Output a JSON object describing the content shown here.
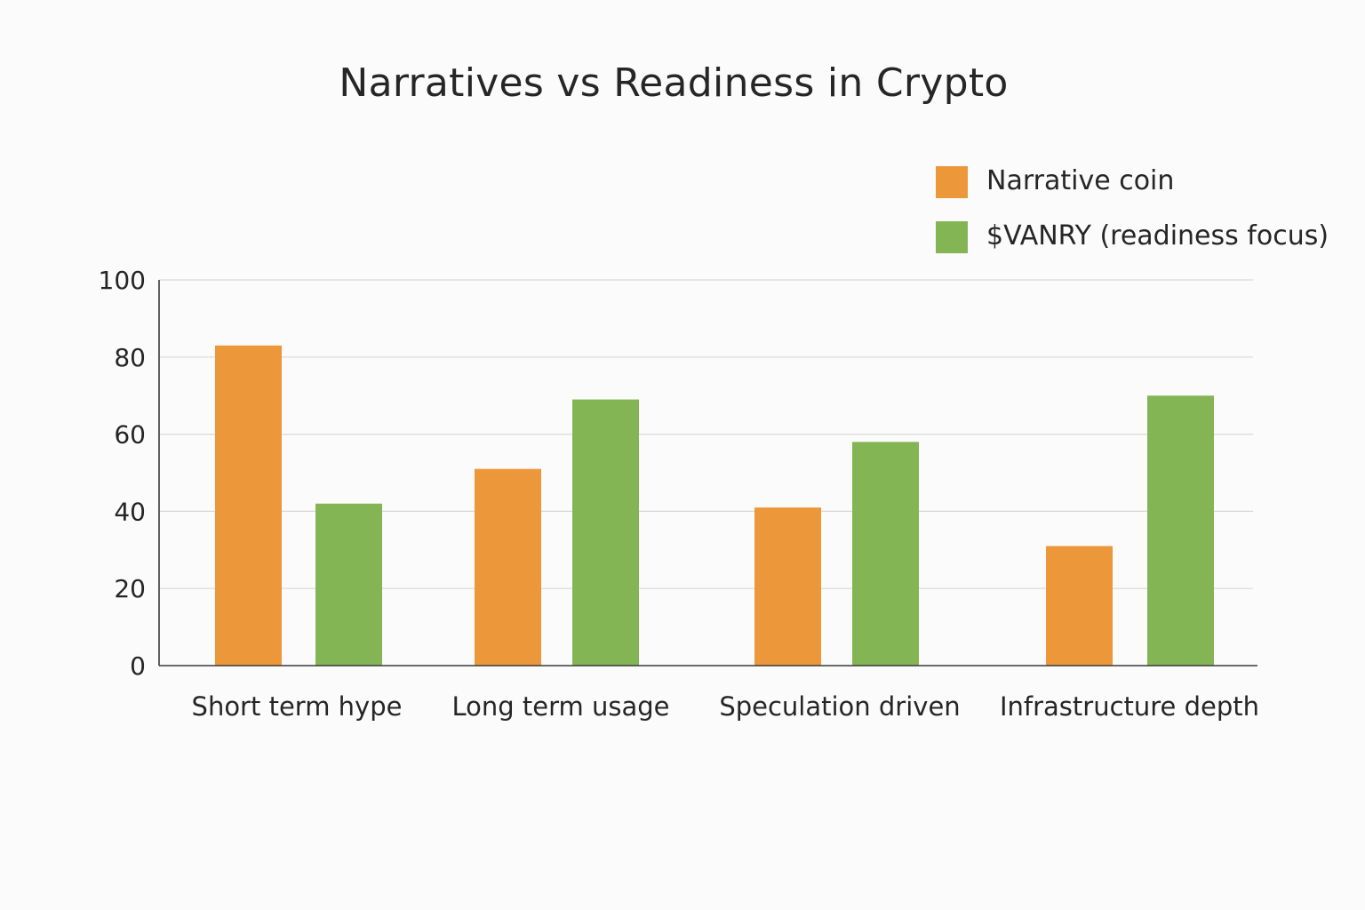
{
  "chart_data": {
    "type": "bar",
    "title": "Narratives vs Readiness in Crypto",
    "xlabel": "",
    "ylabel": "",
    "categories": [
      "Short term hype",
      "Long term usage",
      "Speculation driven",
      "Infrastructure depth"
    ],
    "series": [
      {
        "name": "Narrative coin",
        "color": "#ec973a",
        "values": [
          83,
          51,
          41,
          31
        ]
      },
      {
        "name": "$VANRY (readiness focus)",
        "color": "#84b555",
        "values": [
          42,
          69,
          58,
          70
        ]
      }
    ],
    "ylim": [
      0,
      100
    ],
    "yticks": [
      0,
      20,
      40,
      60,
      80,
      100
    ],
    "grid": true,
    "legend_position": "top-right"
  }
}
